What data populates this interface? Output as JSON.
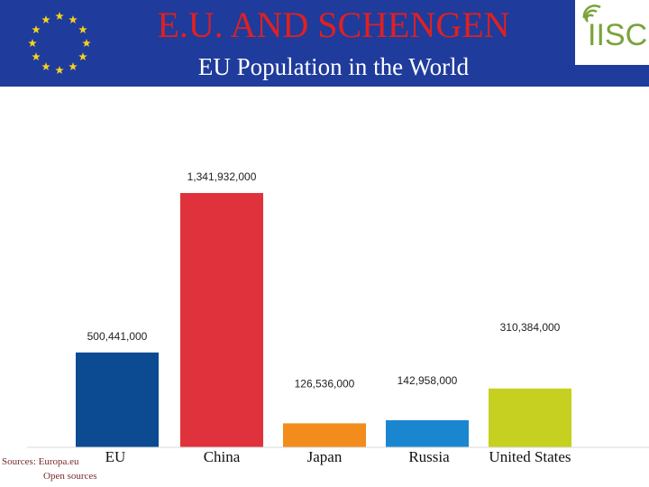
{
  "header": {
    "title": "E.U. AND SCHENGEN",
    "subtitle": "EU Population in the World",
    "logo_text": "IISC",
    "flag_icon": "eu-flag-icon"
  },
  "source": {
    "line1": "Sources: Europa.eu",
    "line2": "Open sources"
  },
  "colors": {
    "header_bg": "#1f3b9c",
    "title": "#e02020"
  },
  "chart_data": {
    "type": "bar",
    "categories": [
      "EU",
      "China",
      "Japan",
      "Russia",
      "United States"
    ],
    "values": [
      500441000,
      1341932000,
      126536000,
      142958000,
      310384000
    ],
    "value_labels": [
      "500,441,000",
      "1,341,932,000",
      "126,536,000",
      "142,958,000",
      "310,384,000"
    ],
    "colors": [
      "#0c4a92",
      "#e0323c",
      "#f28c1c",
      "#1a86d0",
      "#c6d020"
    ],
    "title": "EU Population in the World",
    "ylim": [
      0,
      1341932000
    ],
    "grid": false
  }
}
